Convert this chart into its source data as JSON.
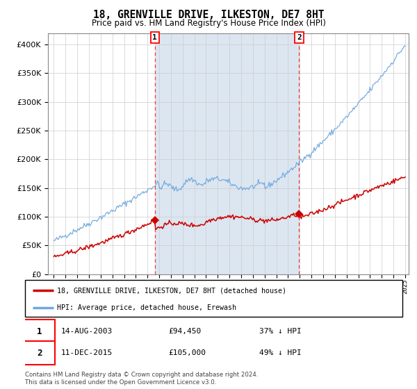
{
  "title": "18, GRENVILLE DRIVE, ILKESTON, DE7 8HT",
  "subtitle": "Price paid vs. HM Land Registry's House Price Index (HPI)",
  "hpi_label": "HPI: Average price, detached house, Erewash",
  "property_label": "18, GRENVILLE DRIVE, ILKESTON, DE7 8HT (detached house)",
  "sale1_date": "14-AUG-2003",
  "sale1_price": 94450,
  "sale1_pct": "37% ↓ HPI",
  "sale2_date": "11-DEC-2015",
  "sale2_price": 105000,
  "sale2_pct": "49% ↓ HPI",
  "hpi_color": "#6fa8dc",
  "property_color": "#cc0000",
  "background_color": "#dce6f1",
  "grid_color": "#cccccc",
  "ylim": [
    0,
    420000
  ],
  "y_ticks": [
    0,
    50000,
    100000,
    150000,
    200000,
    250000,
    300000,
    350000,
    400000
  ],
  "footnote1": "Contains HM Land Registry data © Crown copyright and database right 2024.",
  "footnote2": "This data is licensed under the Open Government Licence v3.0.",
  "start_year": 1995,
  "end_year": 2025,
  "sale1_year": 2003.62,
  "sale2_year": 2015.95
}
